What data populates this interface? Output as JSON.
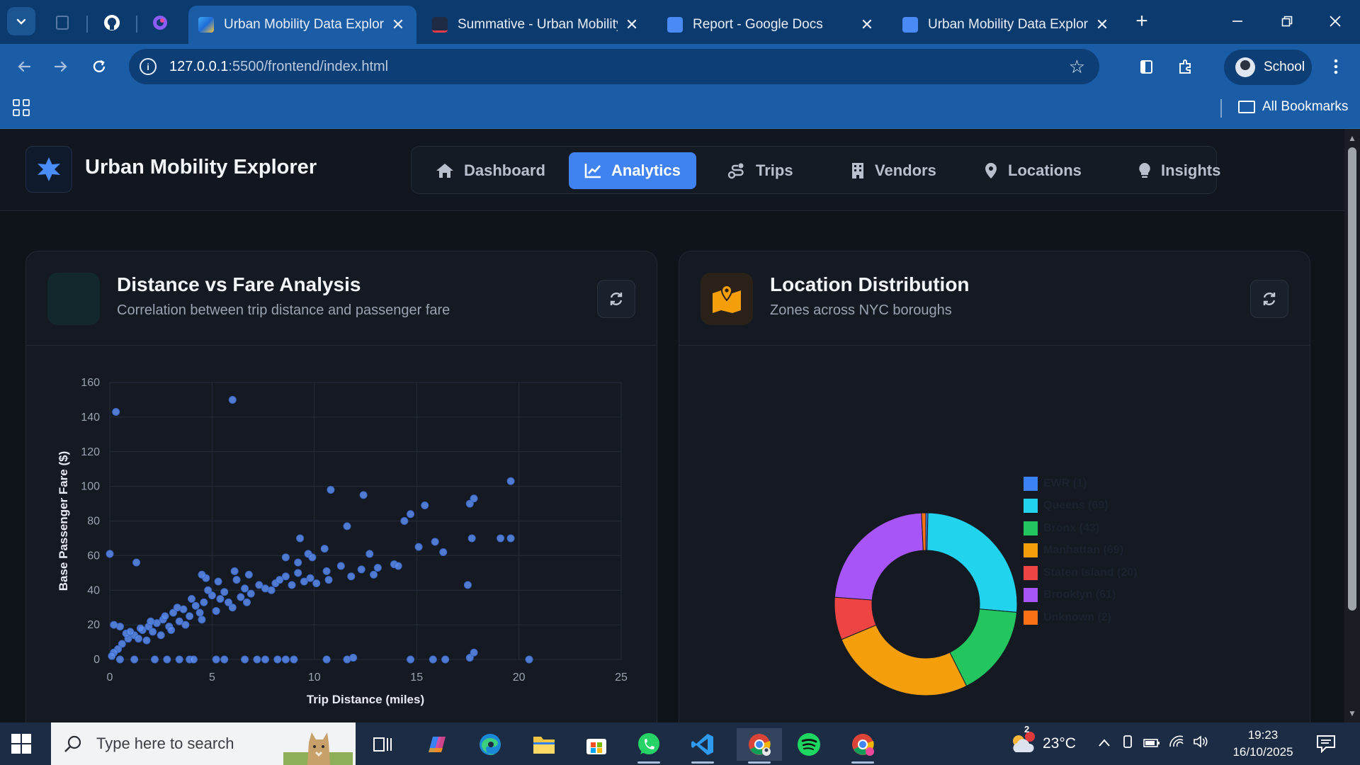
{
  "browser": {
    "tabs": [
      {
        "title": "Urban Mobility Data Explorer",
        "active": true
      },
      {
        "title": "Summative - Urban Mobility",
        "active": false
      },
      {
        "title": "Report - Google Docs",
        "active": false
      },
      {
        "title": "Urban Mobility Data Explorer",
        "active": false
      }
    ],
    "url_host": "127.0.0.1",
    "url_path": ":5500/frontend/index.html",
    "profile_label": "School",
    "all_bookmarks_label": "All Bookmarks"
  },
  "app": {
    "title": "Urban Mobility Explorer",
    "nav": [
      {
        "label": "Dashboard",
        "icon": "home-icon"
      },
      {
        "label": "Analytics",
        "icon": "chart-line-icon",
        "active": true
      },
      {
        "label": "Trips",
        "icon": "route-icon"
      },
      {
        "label": "Vendors",
        "icon": "building-icon"
      },
      {
        "label": "Locations",
        "icon": "map-pin-icon"
      },
      {
        "label": "Insights",
        "icon": "lightbulb-icon"
      }
    ]
  },
  "cards": {
    "scatter": {
      "title": "Distance vs Fare Analysis",
      "subtitle": "Correlation between trip distance and passenger fare"
    },
    "donut": {
      "title": "Location Distribution",
      "subtitle": "Zones across NYC boroughs"
    }
  },
  "chart_data": [
    {
      "type": "scatter",
      "xlabel": "Trip Distance (miles)",
      "ylabel": "Base Passenger Fare ($)",
      "xlim": [
        0,
        25
      ],
      "ylim": [
        0,
        160
      ],
      "x_ticks": [
        "0",
        "5",
        "10",
        "15",
        "20",
        "25"
      ],
      "y_ticks": [
        "0",
        "20",
        "40",
        "60",
        "80",
        "100",
        "120",
        "140",
        "160"
      ],
      "color": "#5b8def",
      "grid": true,
      "points": [
        [
          0.3,
          143
        ],
        [
          6,
          150
        ],
        [
          0,
          61
        ],
        [
          1.3,
          56
        ],
        [
          19.6,
          103
        ],
        [
          10.8,
          98
        ],
        [
          12.4,
          95
        ],
        [
          15.4,
          89
        ],
        [
          17.6,
          90
        ],
        [
          17.8,
          93
        ],
        [
          14.7,
          84
        ],
        [
          14.4,
          80
        ],
        [
          11.6,
          77
        ],
        [
          9.3,
          70
        ],
        [
          17.7,
          70
        ],
        [
          19.1,
          70
        ],
        [
          19.6,
          70
        ],
        [
          15.9,
          68
        ],
        [
          15.1,
          65
        ],
        [
          16.3,
          62
        ],
        [
          10.5,
          64
        ],
        [
          12.7,
          61
        ],
        [
          9.7,
          61
        ],
        [
          13.9,
          55
        ],
        [
          14.1,
          54
        ],
        [
          13.1,
          53
        ],
        [
          11.3,
          54
        ],
        [
          12.3,
          52
        ],
        [
          11.8,
          48
        ],
        [
          12.9,
          49
        ],
        [
          10.6,
          51
        ],
        [
          10.7,
          46
        ],
        [
          10.1,
          44
        ],
        [
          17.5,
          43
        ],
        [
          9.2,
          50
        ],
        [
          8.6,
          48
        ],
        [
          9.5,
          45
        ],
        [
          8.1,
          44
        ],
        [
          7.9,
          40
        ],
        [
          7.3,
          43
        ],
        [
          6.6,
          41
        ],
        [
          6.2,
          46
        ],
        [
          5.6,
          39
        ],
        [
          5.0,
          37
        ],
        [
          4.6,
          33
        ],
        [
          4.2,
          31
        ],
        [
          3.6,
          29
        ],
        [
          3.1,
          27
        ],
        [
          2.6,
          23
        ],
        [
          2.3,
          21
        ],
        [
          1.9,
          19
        ],
        [
          1.6,
          17
        ],
        [
          1.2,
          14
        ],
        [
          0.9,
          12
        ],
        [
          0.6,
          9
        ],
        [
          0.4,
          6
        ],
        [
          0.2,
          4
        ],
        [
          0.1,
          2
        ],
        [
          0.8,
          15
        ],
        [
          1.4,
          12
        ],
        [
          2.1,
          16
        ],
        [
          2.9,
          19
        ],
        [
          3.4,
          22
        ],
        [
          3.9,
          25
        ],
        [
          4.4,
          27
        ],
        [
          5.4,
          35
        ],
        [
          5.8,
          33
        ],
        [
          6.4,
          36
        ],
        [
          6.9,
          38
        ],
        [
          7.6,
          41
        ],
        [
          8.3,
          46
        ],
        [
          8.9,
          43
        ],
        [
          9.8,
          47
        ],
        [
          4.8,
          40
        ],
        [
          4.0,
          35
        ],
        [
          3.3,
          30
        ],
        [
          2.7,
          25
        ],
        [
          2.0,
          22
        ],
        [
          1.5,
          18
        ],
        [
          1.0,
          16
        ],
        [
          0.5,
          19
        ],
        [
          0.2,
          20
        ],
        [
          1.8,
          11
        ],
        [
          2.5,
          14
        ],
        [
          3.0,
          17
        ],
        [
          3.7,
          20
        ],
        [
          4.5,
          23
        ],
        [
          5.2,
          28
        ],
        [
          6.0,
          30
        ],
        [
          6.7,
          33
        ],
        [
          4.7,
          47
        ],
        [
          4.5,
          49
        ],
        [
          5.3,
          45
        ],
        [
          6.1,
          51
        ],
        [
          6.8,
          49
        ],
        [
          8.6,
          59
        ],
        [
          9.9,
          59
        ],
        [
          9.2,
          56
        ],
        [
          2.2,
          0
        ],
        [
          2.8,
          0
        ],
        [
          3.4,
          0
        ],
        [
          3.9,
          0
        ],
        [
          4.1,
          0
        ],
        [
          5.2,
          0
        ],
        [
          5.6,
          0
        ],
        [
          6.6,
          0
        ],
        [
          7.2,
          0
        ],
        [
          7.6,
          0
        ],
        [
          8.2,
          0
        ],
        [
          8.6,
          0
        ],
        [
          9.0,
          0
        ],
        [
          10.6,
          0
        ],
        [
          11.6,
          0
        ],
        [
          11.9,
          1
        ],
        [
          14.7,
          0
        ],
        [
          15.8,
          0
        ],
        [
          16.4,
          0
        ],
        [
          17.6,
          1
        ],
        [
          17.8,
          4
        ],
        [
          20.5,
          0
        ],
        [
          1.2,
          0
        ],
        [
          0.5,
          0
        ]
      ]
    },
    {
      "type": "pie",
      "style": "donut",
      "legend_position": "right",
      "total": 265,
      "slices": [
        {
          "label": "EWR (1)",
          "value": 1,
          "color": "#3b82f6"
        },
        {
          "label": "Queens (69)",
          "value": 69,
          "color": "#22d3ee"
        },
        {
          "label": "Bronx (43)",
          "value": 43,
          "color": "#22c55e"
        },
        {
          "label": "Manhattan (69)",
          "value": 69,
          "color": "#f59e0b"
        },
        {
          "label": "Staten Island (20)",
          "value": 20,
          "color": "#ef4444"
        },
        {
          "label": "Brooklyn (61)",
          "value": 61,
          "color": "#a855f7"
        },
        {
          "label": "Unknown (2)",
          "value": 2,
          "color": "#f97316"
        }
      ]
    }
  ],
  "taskbar": {
    "search_placeholder": "Type here to search",
    "weather": "23°C",
    "weather_badge": "2",
    "time": "19:23",
    "date": "16/10/2025"
  }
}
